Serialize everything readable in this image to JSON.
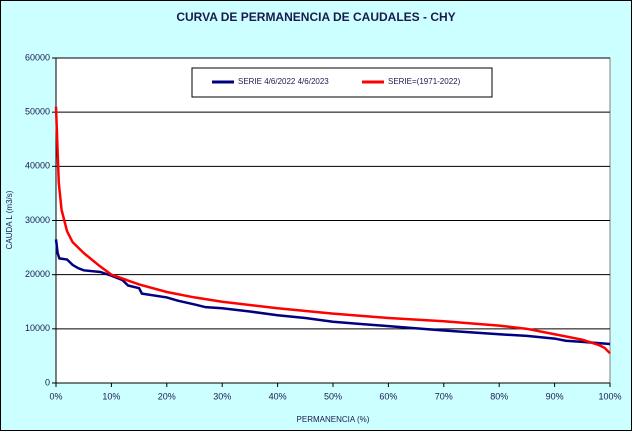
{
  "chart_data": {
    "type": "line",
    "title": "CURVA DE PERMANENCIA DE CAUDALES - CHY",
    "x_label": "PERMANENCIA (%)",
    "y_label": "CAUDA L (m3/s)",
    "xlim": [
      0,
      100
    ],
    "xticks": [
      {
        "value": 0,
        "label": "0%"
      },
      {
        "value": 10,
        "label": "10%"
      },
      {
        "value": 20,
        "label": "20%"
      },
      {
        "value": 30,
        "label": "30%"
      },
      {
        "value": 40,
        "label": "40%"
      },
      {
        "value": 50,
        "label": "50%"
      },
      {
        "value": 60,
        "label": "60%"
      },
      {
        "value": 70,
        "label": "70%"
      },
      {
        "value": 80,
        "label": "80%"
      },
      {
        "value": 90,
        "label": "90%"
      },
      {
        "value": 100,
        "label": "100%"
      }
    ],
    "ylim": [
      0,
      60000
    ],
    "yticks": [
      0,
      10000,
      20000,
      30000,
      40000,
      50000,
      60000
    ],
    "grid": true,
    "series": [
      {
        "name": "SERIE 4/6/2022 4/6/2023",
        "color": "#000080",
        "x": [
          0,
          0.3,
          0.6,
          2,
          3,
          4,
          5,
          8,
          10,
          12,
          13,
          15,
          15.5,
          20,
          22,
          25,
          27,
          30,
          35,
          40,
          45,
          50,
          55,
          60,
          70,
          80,
          85,
          90,
          92,
          95,
          100
        ],
        "values": [
          26500,
          24000,
          23000,
          22800,
          21800,
          21200,
          20800,
          20500,
          19800,
          19000,
          18000,
          17500,
          16500,
          15800,
          15200,
          14500,
          14000,
          13800,
          13200,
          12500,
          12000,
          11300,
          10900,
          10500,
          9700,
          9000,
          8700,
          8200,
          7800,
          7600,
          7200
        ]
      },
      {
        "name": "SERIE=(1971-2022)",
        "color": "#ff0000",
        "x": [
          0,
          0.5,
          1,
          2,
          3,
          5,
          8,
          10,
          15,
          20,
          25,
          30,
          40,
          50,
          60,
          70,
          80,
          85,
          90,
          95,
          98,
          99,
          100
        ],
        "values": [
          51000,
          37000,
          32000,
          28000,
          26000,
          24000,
          21500,
          20000,
          18200,
          16800,
          15800,
          15000,
          13800,
          12800,
          12000,
          11400,
          10600,
          10000,
          9000,
          8000,
          7000,
          6500,
          5500
        ]
      }
    ]
  }
}
